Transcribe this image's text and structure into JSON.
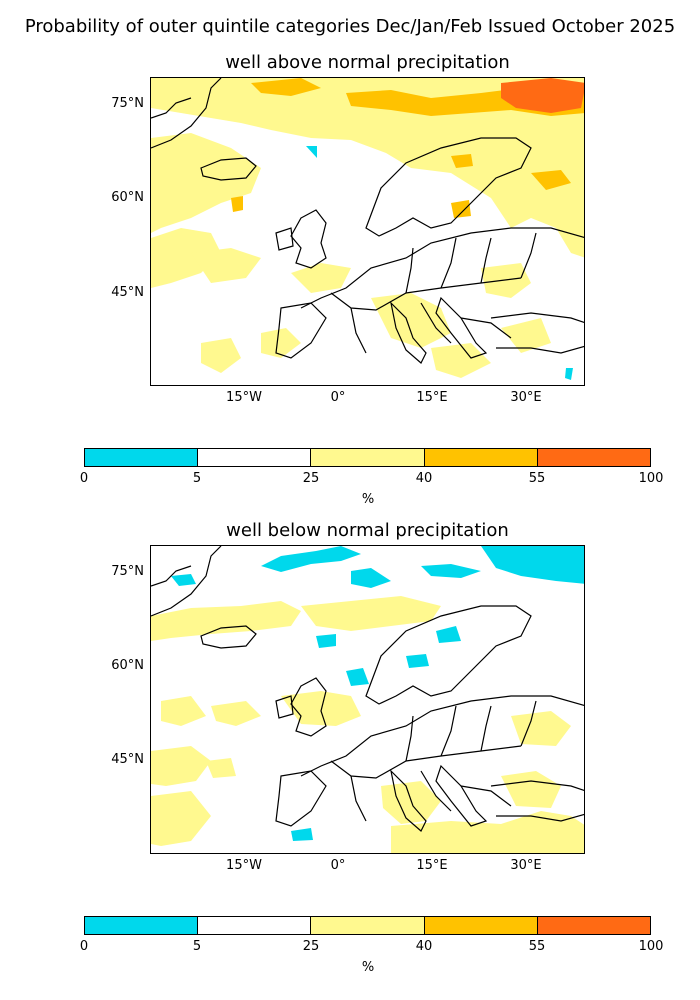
{
  "title": "Probability of outer quintile categories Dec/Jan/Feb Issued October 2025",
  "panels": [
    {
      "title": "well above normal precipitation",
      "lat_ticks": [
        "75°N",
        "60°N",
        "45°N"
      ],
      "lon_ticks": [
        "15°W",
        "0°",
        "15°E",
        "30°E"
      ]
    },
    {
      "title": "well below normal precipitation",
      "lat_ticks": [
        "75°N",
        "60°N",
        "45°N"
      ],
      "lon_ticks": [
        "15°W",
        "0°",
        "15°E",
        "30°E"
      ]
    }
  ],
  "colorbar": {
    "ticks": [
      "0",
      "5",
      "25",
      "40",
      "55",
      "100"
    ],
    "label": "%",
    "colors": [
      "#00d8ec",
      "#ffffff",
      "#fff98f",
      "#ffc200",
      "#ff6a14"
    ]
  },
  "map_colors": {
    "land_outline": "#000000",
    "ocean": "#ffffff"
  }
}
